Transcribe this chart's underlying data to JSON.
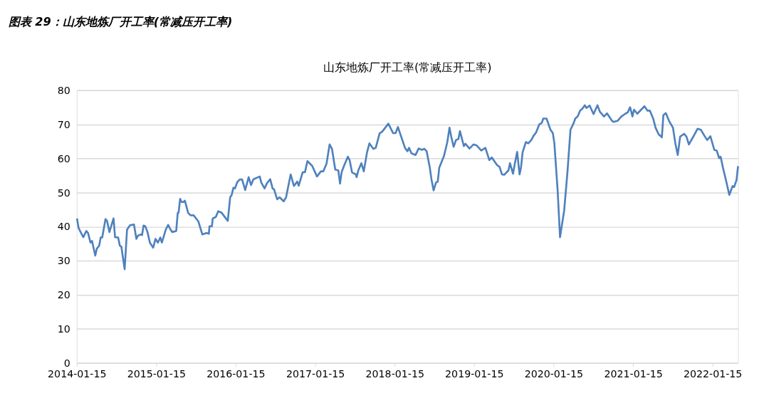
{
  "chart_data": {
    "type": "line",
    "title": "图表 29：山东地炼厂开工率(常减压开工率)",
    "subtitle": "山东地炼厂开工率(常减压开工率)",
    "x": [
      "2014-01-16",
      "2014-01-23",
      "2014-01-30",
      "2014-02-14",
      "2014-02-28",
      "2014-03-08",
      "2014-03-19",
      "2014-03-26",
      "2014-04-10",
      "2014-04-17",
      "2014-04-28",
      "2014-05-05",
      "2014-05-12",
      "2014-05-27",
      "2014-06-03",
      "2014-06-14",
      "2014-07-03",
      "2014-07-10",
      "2014-07-24",
      "2014-08-01",
      "2014-08-08",
      "2014-08-23",
      "2014-09-03",
      "2014-09-17",
      "2014-10-05",
      "2014-10-16",
      "2014-10-24",
      "2014-11-07",
      "2014-11-11",
      "2014-11-18",
      "2014-11-26",
      "2014-12-06",
      "2014-12-17",
      "2015-01-01",
      "2015-01-12",
      "2015-01-23",
      "2015-02-03",
      "2015-02-10",
      "2015-02-28",
      "2015-03-11",
      "2015-03-22",
      "2015-03-30",
      "2015-04-17",
      "2015-04-24",
      "2015-04-28",
      "2015-05-05",
      "2015-05-12",
      "2015-05-20",
      "2015-05-27",
      "2015-06-11",
      "2015-06-22",
      "2015-07-06",
      "2015-07-28",
      "2015-08-15",
      "2015-09-03",
      "2015-09-14",
      "2015-09-17",
      "2015-09-28",
      "2015-10-02",
      "2015-10-16",
      "2015-10-27",
      "2015-11-11",
      "2015-12-10",
      "2015-12-21",
      "2015-12-28",
      "2016-01-05",
      "2016-01-12",
      "2016-01-23",
      "2016-02-03",
      "2016-02-14",
      "2016-02-28",
      "2016-03-15",
      "2016-03-26",
      "2016-04-06",
      "2016-05-05",
      "2016-05-12",
      "2016-05-27",
      "2016-06-07",
      "2016-06-22",
      "2016-07-03",
      "2016-07-10",
      "2016-07-24",
      "2016-08-04",
      "2016-08-23",
      "2016-09-03",
      "2016-09-24",
      "2016-10-09",
      "2016-10-24",
      "2016-10-31",
      "2016-11-18",
      "2016-11-29",
      "2016-12-10",
      "2017-01-01",
      "2017-01-23",
      "2017-02-10",
      "2017-02-21",
      "2017-03-08",
      "2017-03-22",
      "2017-04-02",
      "2017-04-17",
      "2017-05-01",
      "2017-05-09",
      "2017-05-16",
      "2017-05-27",
      "2017-06-14",
      "2017-06-22",
      "2017-07-03",
      "2017-07-21",
      "2017-07-24",
      "2017-08-01",
      "2017-08-15",
      "2017-08-26",
      "2017-09-10",
      "2017-09-21",
      "2017-10-09",
      "2017-10-20",
      "2017-11-07",
      "2017-11-18",
      "2017-11-29",
      "2017-12-17",
      "2018-01-08",
      "2018-01-19",
      "2018-01-30",
      "2018-02-14",
      "2018-03-04",
      "2018-03-15",
      "2018-03-22",
      "2018-04-02",
      "2018-04-21",
      "2018-05-05",
      "2018-05-20",
      "2018-05-31",
      "2018-06-11",
      "2018-06-25",
      "2018-07-03",
      "2018-07-13",
      "2018-07-24",
      "2018-08-01",
      "2018-08-08",
      "2018-08-30",
      "2018-09-14",
      "2018-09-24",
      "2018-10-02",
      "2018-10-13",
      "2018-10-24",
      "2018-11-04",
      "2018-11-11",
      "2018-11-29",
      "2018-12-06",
      "2018-12-25",
      "2019-01-12",
      "2019-01-27",
      "2019-02-17",
      "2019-03-08",
      "2019-03-26",
      "2019-04-06",
      "2019-05-01",
      "2019-05-12",
      "2019-05-23",
      "2019-06-03",
      "2019-06-22",
      "2019-06-29",
      "2019-07-13",
      "2019-07-21",
      "2019-08-01",
      "2019-08-12",
      "2019-08-19",
      "2019-08-26",
      "2019-09-10",
      "2019-09-21",
      "2019-10-05",
      "2019-10-16",
      "2019-10-27",
      "2019-11-11",
      "2019-11-22",
      "2019-11-29",
      "2019-12-14",
      "2019-12-21",
      "2020-01-01",
      "2020-01-12",
      "2020-01-19",
      "2020-02-03",
      "2020-02-14",
      "2020-03-04",
      "2020-03-19",
      "2020-04-02",
      "2020-04-17",
      "2020-04-24",
      "2020-05-05",
      "2020-05-16",
      "2020-05-27",
      "2020-06-07",
      "2020-06-14",
      "2020-06-29",
      "2020-07-17",
      "2020-08-04",
      "2020-08-15",
      "2020-09-03",
      "2020-09-17",
      "2020-10-09",
      "2020-10-16",
      "2020-11-04",
      "2020-11-22",
      "2020-12-10",
      "2020-12-21",
      "2021-01-01",
      "2021-01-12",
      "2021-01-19",
      "2021-02-03",
      "2021-02-21",
      "2021-03-08",
      "2021-03-22",
      "2021-04-02",
      "2021-04-17",
      "2021-04-28",
      "2021-05-12",
      "2021-05-27",
      "2021-06-03",
      "2021-06-14",
      "2021-06-29",
      "2021-07-17",
      "2021-07-28",
      "2021-08-08",
      "2021-08-19",
      "2021-09-06",
      "2021-09-17",
      "2021-09-28",
      "2021-10-16",
      "2021-11-07",
      "2021-11-22",
      "2021-12-10",
      "2021-12-21",
      "2022-01-05",
      "2022-01-23",
      "2022-02-03",
      "2022-02-14",
      "2022-02-21",
      "2022-03-04",
      "2022-03-19",
      "2022-04-02",
      "2022-04-17",
      "2022-04-24",
      "2022-05-05",
      "2022-05-12"
    ],
    "series": [
      {
        "color": "#4f81bd",
        "values": [
          42.4,
          39.7,
          38.7,
          36.9,
          38.7,
          38.1,
          35.3,
          35.8,
          31.5,
          33.5,
          34.4,
          36.8,
          36.8,
          42.2,
          41.7,
          38.4,
          42.4,
          36.9,
          36.8,
          34.4,
          34.1,
          27.5,
          39.1,
          40.4,
          40.6,
          36.4,
          37.4,
          37.7,
          37.5,
          40.3,
          40.1,
          38.4,
          35.3,
          33.8,
          36.4,
          35.3,
          36.8,
          35.3,
          39.1,
          40.5,
          39.1,
          38.4,
          38.7,
          44.0,
          44.1,
          48.1,
          47.2,
          47.2,
          47.6,
          44.0,
          43.3,
          43.3,
          41.5,
          37.7,
          38.1,
          37.9,
          40.1,
          40.1,
          42.4,
          42.8,
          44.5,
          44.1,
          41.7,
          48.6,
          49.3,
          51.4,
          51.2,
          53.1,
          53.8,
          53.8,
          50.7,
          54.5,
          52.2,
          53.9,
          54.7,
          52.9,
          51.2,
          52.7,
          53.9,
          51.2,
          50.9,
          48.0,
          48.6,
          47.4,
          48.6,
          55.3,
          51.9,
          53.2,
          52.0,
          55.9,
          56.0,
          59.2,
          57.8,
          54.7,
          56.2,
          56.2,
          58.5,
          64.1,
          62.8,
          56.7,
          56.5,
          52.6,
          55.9,
          57.8,
          60.5,
          59.5,
          55.9,
          55.3,
          54.5,
          56.5,
          58.6,
          56.2,
          61.8,
          64.4,
          62.8,
          63.1,
          67.4,
          67.8,
          68.7,
          70.2,
          67.4,
          67.4,
          69.2,
          66.4,
          63.0,
          62.1,
          63.1,
          61.5,
          61.0,
          62.9,
          62.5,
          62.8,
          62.1,
          57.5,
          53.9,
          50.6,
          52.9,
          53.2,
          57.3,
          60.8,
          64.8,
          69.0,
          66.4,
          63.4,
          65.4,
          65.7,
          68.0,
          63.6,
          64.3,
          62.9,
          64.1,
          63.8,
          62.3,
          63.1,
          59.5,
          60.3,
          58.0,
          57.5,
          55.3,
          55.2,
          56.5,
          58.6,
          55.5,
          58.4,
          61.9,
          55.3,
          57.5,
          61.8,
          64.8,
          64.4,
          65.4,
          66.7,
          67.6,
          70.0,
          70.4,
          71.7,
          71.7,
          70.4,
          68.4,
          67.4,
          64.4,
          50.6,
          36.9,
          44.7,
          55.9,
          68.4,
          70.4,
          71.7,
          72.3,
          74.0,
          74.6,
          75.6,
          74.8,
          75.5,
          73.0,
          75.6,
          73.7,
          72.3,
          73.2,
          71.1,
          70.7,
          71.0,
          72.3,
          73.1,
          73.5,
          75.0,
          72.3,
          74.3,
          73.1,
          74.3,
          75.3,
          74.0,
          74.0,
          71.7,
          69.0,
          67.1,
          66.2,
          72.7,
          73.3,
          71.0,
          69.0,
          64.4,
          61.0,
          66.4,
          67.2,
          66.4,
          64.1,
          66.1,
          68.7,
          68.4,
          66.5,
          65.4,
          66.5,
          62.5,
          62.3,
          60.1,
          60.5,
          57.2,
          53.2,
          49.3,
          51.9,
          51.6,
          53.6,
          57.7
        ]
      }
    ],
    "xlim": [
      "2014-01-15",
      "2022-05-12"
    ],
    "xticks": [
      "2014-01-15",
      "2015-01-15",
      "2016-01-15",
      "2017-01-15",
      "2018-01-15",
      "2019-01-15",
      "2020-01-15",
      "2021-01-15",
      "2022-01-15"
    ],
    "ylim": [
      0,
      80
    ],
    "yticks": [
      0,
      10,
      20,
      30,
      40,
      50,
      60,
      70,
      80
    ],
    "grid": "y",
    "marker": "none",
    "line_style": "solid"
  }
}
